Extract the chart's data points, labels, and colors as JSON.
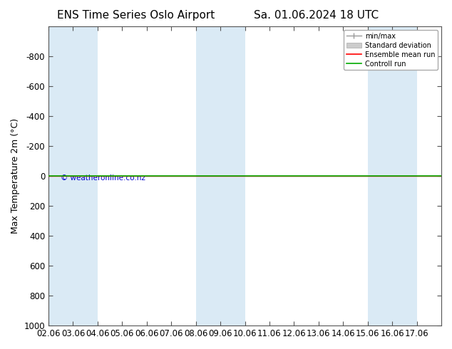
{
  "title_left": "ENS Time Series Oslo Airport",
  "title_right": "Sa. 01.06.2024 18 UTC",
  "ylabel": "Max Temperature 2m (°C)",
  "ylim_bottom": 1000,
  "ylim_top": -1000,
  "yticks": [
    -800,
    -600,
    -400,
    -200,
    0,
    200,
    400,
    600,
    800,
    1000
  ],
  "xlim_left": 0,
  "xlim_right": 16,
  "xtick_labels": [
    "02.06",
    "03.06",
    "04.06",
    "05.06",
    "06.06",
    "07.06",
    "08.06",
    "09.06",
    "10.06",
    "11.06",
    "12.06",
    "13.06",
    "14.06",
    "15.06",
    "16.06",
    "17.06"
  ],
  "shaded_columns": [
    0,
    1,
    6,
    7,
    13,
    14
  ],
  "shaded_color": "#daeaf5",
  "bg_color": "#ffffff",
  "plot_bg_color": "#ffffff",
  "green_line_y": 0,
  "red_line_y": 0,
  "green_line_color": "#00aa00",
  "red_line_color": "#ff0000",
  "watermark": "© weatheronline.co.nz",
  "watermark_color": "#0000cc",
  "legend_minmax_color": "#999999",
  "legend_stddev_color": "#cccccc",
  "legend_mean_color": "#ff0000",
  "legend_control_color": "#00aa00",
  "title_fontsize": 11,
  "axis_fontsize": 9,
  "tick_fontsize": 8.5
}
